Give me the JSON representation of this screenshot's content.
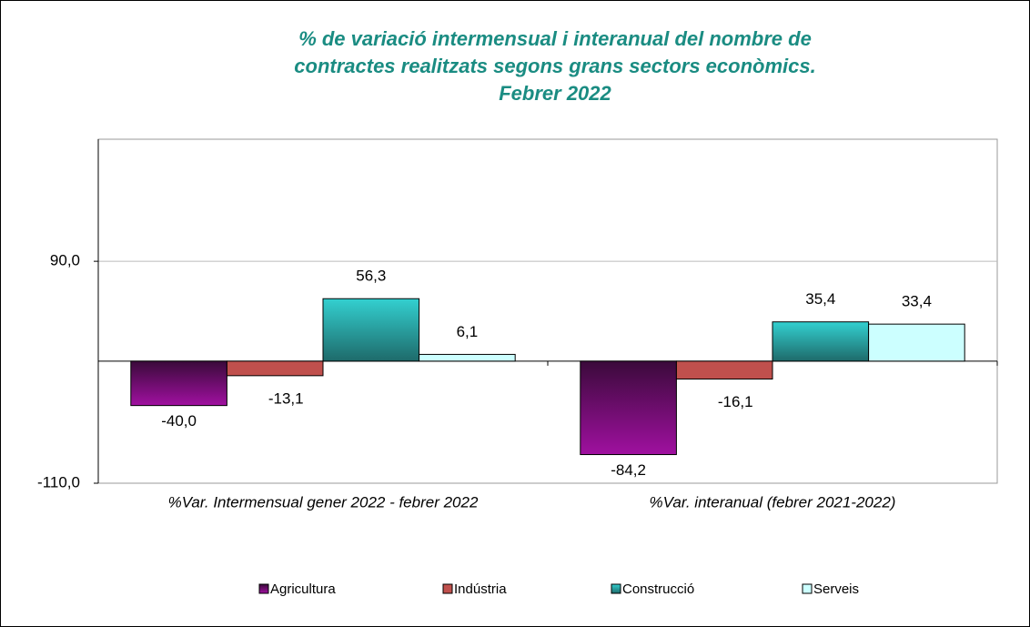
{
  "chart_data": {
    "type": "bar",
    "title": [
      "% de variació intermensual i interanual del nombre de",
      "contractes realitzats segons grans sectors econòmics.",
      "Febrer 2022"
    ],
    "categories": [
      "%Var. Intermensual gener 2022 - febrer 2022",
      "%Var. interanual (febrer 2021-2022)"
    ],
    "series": [
      {
        "name": "Agricultura",
        "color": "#800080",
        "values": [
          -40.0,
          -84.2
        ],
        "value_labels": [
          "-40,0",
          "-84,2"
        ]
      },
      {
        "name": "Indústria",
        "color": "#c0504d",
        "values": [
          -13.1,
          -16.1
        ],
        "value_labels": [
          "-13,1",
          "-16,1"
        ]
      },
      {
        "name": "Construcció",
        "color": "#33cccc",
        "values": [
          56.3,
          35.4
        ],
        "value_labels": [
          "56,3",
          "35,4"
        ]
      },
      {
        "name": "Serveis",
        "color": "#ccffff",
        "values": [
          6.1,
          33.4
        ],
        "value_labels": [
          "6,1",
          "33,4"
        ]
      }
    ],
    "ylim": [
      -110,
      200
    ],
    "yticks": [
      {
        "value": -110,
        "label": "-110,0"
      },
      {
        "value": 90,
        "label": "90,0"
      }
    ],
    "grid": true
  }
}
